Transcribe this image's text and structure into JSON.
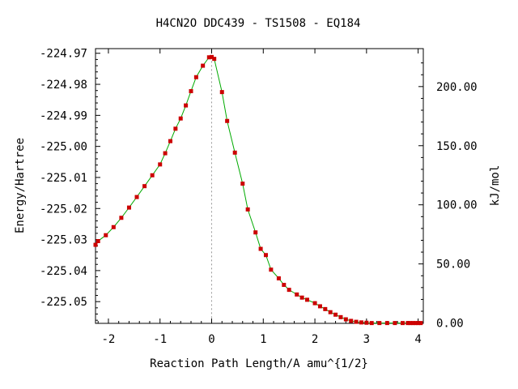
{
  "chart_data": {
    "type": "line",
    "title": "H4CN2O   DDC439 - TS1508 - EQ184",
    "xlabel": "Reaction Path Length/A amu^{1/2}",
    "ylabel": "Energy/Hartree",
    "y2label": "kJ/mol",
    "xlim": [
      -2.25,
      4.1
    ],
    "ylim": [
      -225.057,
      -224.9685
    ],
    "x_ticks": [
      -2,
      -1,
      0,
      1,
      2,
      3,
      4
    ],
    "x_tick_labels": [
      "-2",
      "-1",
      "0",
      "1",
      "2",
      "3",
      "4"
    ],
    "y_ticks": [
      -224.97,
      -224.98,
      -224.99,
      -225.0,
      -225.01,
      -225.02,
      -225.03,
      -225.04,
      -225.05
    ],
    "y_tick_labels": [
      "-224.97",
      "-224.98",
      "-224.99",
      "-225.00",
      "-225.01",
      "-225.02",
      "-225.03",
      "-225.04",
      "-225.05"
    ],
    "y2_ref_energy": -225.0569,
    "y2_ticks": [
      0,
      50,
      100,
      150,
      200
    ],
    "y2_tick_labels": [
      "0.00",
      "50.00",
      "100.00",
      "150.00",
      "200.00"
    ],
    "ts_x": 0,
    "grid": false,
    "series": [
      {
        "line_color": "#00aa00",
        "marker_color": "#cc0000",
        "points": [
          {
            "x": -2.25,
            "y": -225.0317
          },
          {
            "x": -2.2,
            "y": -225.0305
          },
          {
            "x": -2.05,
            "y": -225.0286
          },
          {
            "x": -1.9,
            "y": -225.026
          },
          {
            "x": -1.75,
            "y": -225.023
          },
          {
            "x": -1.6,
            "y": -225.0197
          },
          {
            "x": -1.45,
            "y": -225.0163
          },
          {
            "x": -1.3,
            "y": -225.0128
          },
          {
            "x": -1.15,
            "y": -225.0093
          },
          {
            "x": -1.0,
            "y": -225.0058
          },
          {
            "x": -0.9,
            "y": -225.0022
          },
          {
            "x": -0.8,
            "y": -224.9983
          },
          {
            "x": -0.7,
            "y": -224.9943
          },
          {
            "x": -0.6,
            "y": -224.991
          },
          {
            "x": -0.5,
            "y": -224.9868
          },
          {
            "x": -0.4,
            "y": -224.9822
          },
          {
            "x": -0.3,
            "y": -224.9777
          },
          {
            "x": -0.17,
            "y": -224.974
          },
          {
            "x": -0.05,
            "y": -224.9713
          },
          {
            "x": 0.0,
            "y": -224.9712
          },
          {
            "x": 0.05,
            "y": -224.9718
          },
          {
            "x": 0.2,
            "y": -224.9825
          },
          {
            "x": 0.3,
            "y": -224.9918
          },
          {
            "x": 0.45,
            "y": -225.002
          },
          {
            "x": 0.6,
            "y": -225.012
          },
          {
            "x": 0.7,
            "y": -225.0203
          },
          {
            "x": 0.85,
            "y": -225.0277
          },
          {
            "x": 0.95,
            "y": -225.033
          },
          {
            "x": 1.05,
            "y": -225.035
          },
          {
            "x": 1.15,
            "y": -225.0397
          },
          {
            "x": 1.3,
            "y": -225.0425
          },
          {
            "x": 1.4,
            "y": -225.0446
          },
          {
            "x": 1.5,
            "y": -225.0462
          },
          {
            "x": 1.65,
            "y": -225.0477
          },
          {
            "x": 1.75,
            "y": -225.0487
          },
          {
            "x": 1.85,
            "y": -225.0494
          },
          {
            "x": 2.0,
            "y": -225.0505
          },
          {
            "x": 2.1,
            "y": -225.0515
          },
          {
            "x": 2.2,
            "y": -225.0524
          },
          {
            "x": 2.3,
            "y": -225.0534
          },
          {
            "x": 2.4,
            "y": -225.0542
          },
          {
            "x": 2.5,
            "y": -225.055
          },
          {
            "x": 2.6,
            "y": -225.0557
          },
          {
            "x": 2.7,
            "y": -225.0562
          },
          {
            "x": 2.8,
            "y": -225.0565
          },
          {
            "x": 2.9,
            "y": -225.0567
          },
          {
            "x": 3.0,
            "y": -225.0568
          },
          {
            "x": 3.1,
            "y": -225.0569
          },
          {
            "x": 3.25,
            "y": -225.0569
          },
          {
            "x": 3.4,
            "y": -225.0569
          },
          {
            "x": 3.55,
            "y": -225.0569
          },
          {
            "x": 3.7,
            "y": -225.0569
          },
          {
            "x": 3.8,
            "y": -225.0569
          },
          {
            "x": 3.85,
            "y": -225.0569
          },
          {
            "x": 3.9,
            "y": -225.0569
          },
          {
            "x": 3.95,
            "y": -225.0569
          },
          {
            "x": 4.0,
            "y": -225.0569
          },
          {
            "x": 4.05,
            "y": -225.0569
          }
        ]
      }
    ]
  }
}
